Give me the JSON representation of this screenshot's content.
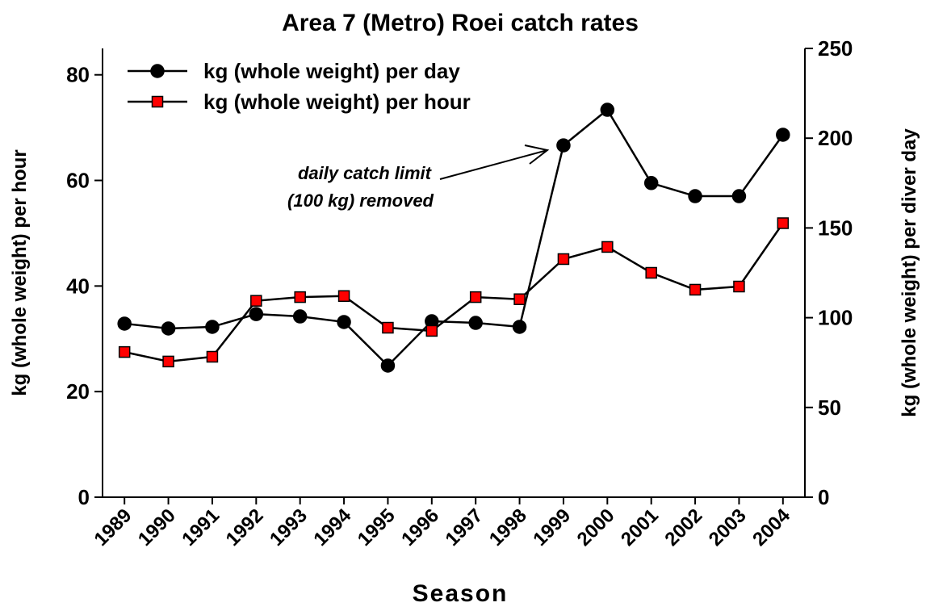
{
  "chart_data": {
    "type": "line",
    "title": "Area 7 (Metro) Roei catch rates",
    "x_label": "Season",
    "y_label": "kg (whole weight) per hour",
    "y2_label": "kg (whole weight) per diver day",
    "categories": [
      "1989",
      "1990",
      "1991",
      "1992",
      "1993",
      "1994",
      "1995",
      "1996",
      "1997",
      "1998",
      "1999",
      "2000",
      "2001",
      "2002",
      "2003",
      "2004"
    ],
    "series": [
      {
        "name": "kg (whole weight) per day",
        "color": "#000000",
        "marker": "circle",
        "axis": "y2",
        "values": [
          96.7,
          94,
          94.9,
          102,
          100.7,
          97.6,
          73.3,
          98,
          97.1,
          94.9,
          196,
          215.8,
          175,
          167.7,
          167.7,
          201.9
        ]
      },
      {
        "name": "kg (whole weight) per hour",
        "color": "#ff0000",
        "marker": "square",
        "values": [
          27.5,
          25.7,
          26.6,
          37.2,
          37.9,
          38.1,
          32.1,
          31.5,
          37.9,
          37.5,
          45.1,
          47.4,
          42.5,
          39.3,
          39.9,
          51.9
        ]
      }
    ],
    "ylim": [
      0,
      85
    ],
    "yticks": [
      0,
      20,
      40,
      60,
      80
    ],
    "y2lim": [
      0,
      250
    ],
    "y2ticks": [
      0,
      50,
      100,
      150,
      200,
      250
    ],
    "annotation": [
      "daily catch limit",
      "(100 kg) removed"
    ],
    "legend": "upper left"
  }
}
